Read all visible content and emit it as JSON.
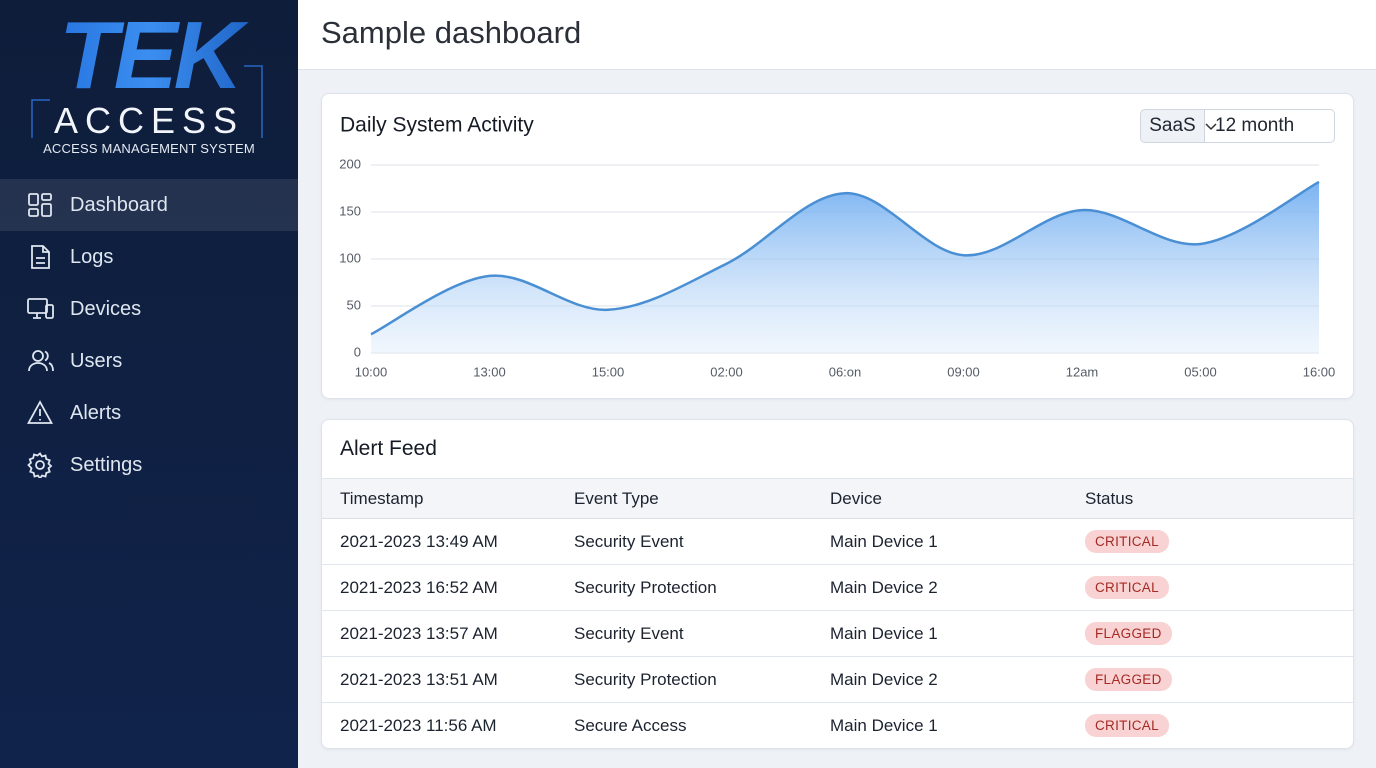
{
  "sidebar": {
    "logo": {
      "mark": "TEK",
      "name": "ACCESS",
      "tagline": "ACCESS MANAGEMENT SYSTEM"
    },
    "nav": [
      "Dashboard",
      "Logs",
      "Devices",
      "Users",
      "Alerts",
      "Settings"
    ]
  },
  "header": {
    "title": "Sample dashboard"
  },
  "chart_controls": {
    "source": "SaaS",
    "range": "12 month"
  },
  "chart_data": {
    "type": "area",
    "title": "Daily System Activity",
    "categories": [
      "10:00",
      "13:00",
      "15:00",
      "02:00",
      "06:on",
      "09:00",
      "12am",
      "05:00",
      "16:00"
    ],
    "values": [
      20,
      82,
      46,
      95,
      170,
      104,
      152,
      116,
      182
    ],
    "color": "#4a8fd4",
    "ylim": [
      0,
      200
    ],
    "yticks": [
      0,
      50,
      100,
      150,
      200
    ],
    "grid": true
  },
  "alert_feed": {
    "title": "Alert Feed",
    "columns": [
      "Timestamp",
      "Event Type",
      "Device",
      "Status"
    ],
    "rows": [
      [
        "2021-2023 13:49 AM",
        "Security Event",
        "Main Device 1",
        "CRITICAL"
      ],
      [
        "2021-2023 16:52 AM",
        "Security Protection",
        "Main Device 2",
        "CRITICAL"
      ],
      [
        "2021-2023 13:57 AM",
        "Security Event",
        "Main Device 1",
        "FLAGGED"
      ],
      [
        "2021-2023 13:51 AM",
        "Security Protection",
        "Main Device 2",
        "FLAGGED"
      ],
      [
        "2021-2023 11:56 AM",
        "Secure Access",
        "Main Device 1",
        "CRITICAL"
      ]
    ]
  }
}
